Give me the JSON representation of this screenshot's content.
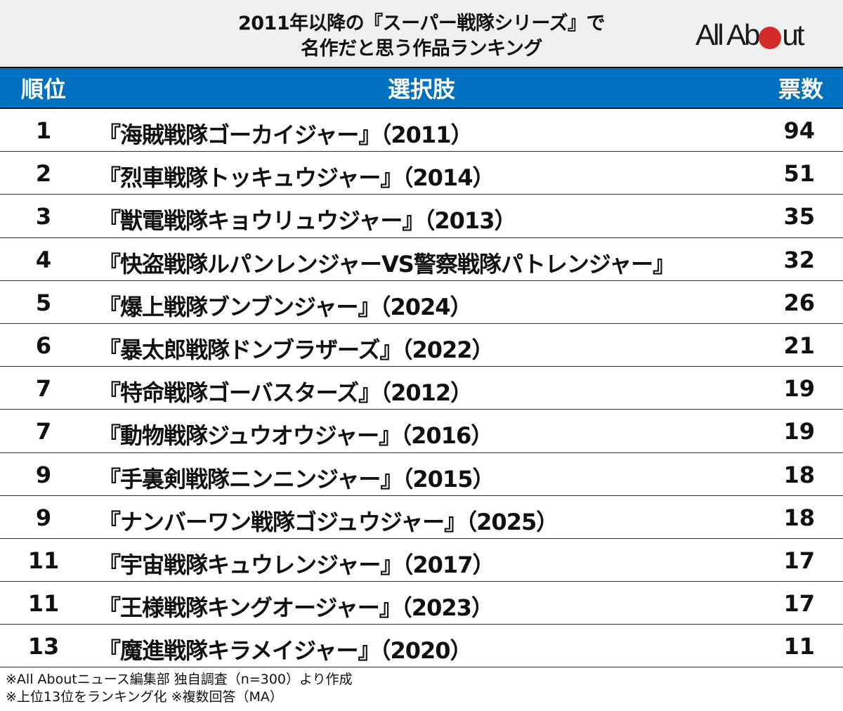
{
  "header": {
    "title_line1": "2011年以降の『スーパー戦隊シリーズ』で",
    "title_line2": "名作だと思う作品ランキング",
    "logo_text_left": "All Ab",
    "logo_text_right": "ut",
    "logo_dot_color": "#d42a2a"
  },
  "table": {
    "header_bg": "#0070c0",
    "columns": [
      "順位",
      "選択肢",
      "票数"
    ],
    "rows": [
      {
        "rank": "1",
        "name": "『海賊戦隊ゴーカイジャー』（2011）",
        "votes": "94"
      },
      {
        "rank": "2",
        "name": "『烈車戦隊トッキュウジャー』（2014）",
        "votes": "51"
      },
      {
        "rank": "3",
        "name": "『獣電戦隊キョウリュウジャー』（2013）",
        "votes": "35"
      },
      {
        "rank": "4",
        "name": "『快盗戦隊ルパンレンジャーVS警察戦隊パトレンジャー』",
        "votes": "32"
      },
      {
        "rank": "5",
        "name": "『爆上戦隊ブンブンジャー』（2024）",
        "votes": "26"
      },
      {
        "rank": "6",
        "name": "『暴太郎戦隊ドンブラザーズ』（2022）",
        "votes": "21"
      },
      {
        "rank": "7",
        "name": "『特命戦隊ゴーバスターズ』（2012）",
        "votes": "19"
      },
      {
        "rank": "7",
        "name": "『動物戦隊ジュウオウジャー』（2016）",
        "votes": "19"
      },
      {
        "rank": "9",
        "name": "『手裏剣戦隊ニンニンジャー』（2015）",
        "votes": "18"
      },
      {
        "rank": "9",
        "name": "『ナンバーワン戦隊ゴジュウジャー』（2025）",
        "votes": "18"
      },
      {
        "rank": "11",
        "name": "『宇宙戦隊キュウレンジャー』（2017）",
        "votes": "17"
      },
      {
        "rank": "11",
        "name": "『王様戦隊キングオージャー』（2023）",
        "votes": "17"
      },
      {
        "rank": "13",
        "name": "『魔進戦隊キラメイジャー』（2020）",
        "votes": "11"
      }
    ]
  },
  "footer": {
    "note1": "※All Aboutニュース編集部 独自調査（n=300）より作成",
    "note2": "※上位13位をランキング化 ※複数回答（MA）"
  },
  "chart_data": {
    "type": "table",
    "title": "2011年以降の『スーパー戦隊シリーズ』で名作だと思う作品ランキング",
    "columns": [
      "順位",
      "選択肢",
      "票数"
    ],
    "categories": [
      "『海賊戦隊ゴーカイジャー』（2011）",
      "『烈車戦隊トッキュウジャー』（2014）",
      "『獣電戦隊キョウリュウジャー』（2013）",
      "『快盗戦隊ルパンレンジャーVS警察戦隊パトレンジャー』",
      "『爆上戦隊ブンブンジャー』（2024）",
      "『暴太郎戦隊ドンブラザーズ』（2022）",
      "『特命戦隊ゴーバスターズ』（2012）",
      "『動物戦隊ジュウオウジャー』（2016）",
      "『手裏剣戦隊ニンニンジャー』（2015）",
      "『ナンバーワン戦隊ゴジュウジャー』（2025）",
      "『宇宙戦隊キュウレンジャー』（2017）",
      "『王様戦隊キングオージャー』（2023）",
      "『魔進戦隊キラメイジャー』（2020）"
    ],
    "ranks": [
      1,
      2,
      3,
      4,
      5,
      6,
      7,
      7,
      9,
      9,
      11,
      11,
      13
    ],
    "values": [
      94,
      51,
      35,
      32,
      26,
      21,
      19,
      19,
      18,
      18,
      17,
      17,
      11
    ],
    "source": "All Aboutニュース編集部 独自調査（n=300）",
    "notes": [
      "上位13位をランキング化",
      "複数回答（MA）"
    ]
  }
}
